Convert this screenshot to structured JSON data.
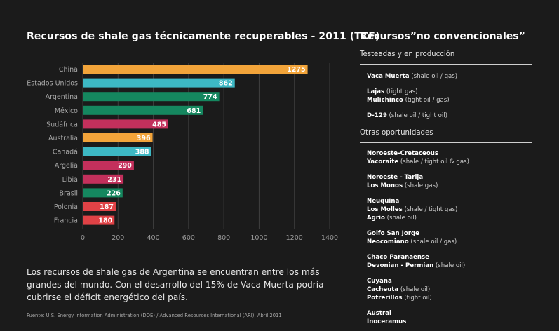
{
  "left": {
    "title": "Recursos de shale gas técnicamente recuperables - 2011 (TCF)",
    "body": "Los recursos de shale gas de Argentina se encuentran entre los más grandes del mundo. Con el desarrollo del 15% de Vaca Muerta podría cubrirse el déficit energético del país.",
    "source": "Fuente: U.S. Energy Information Administration (DOE) / Advanced Resources International (ARI), Abril 2011"
  },
  "chart_data": {
    "type": "bar",
    "orientation": "horizontal",
    "categories": [
      "China",
      "Estados Unidos",
      "Argentina",
      "México",
      "Sudáfrica",
      "Australia",
      "Canadá",
      "Argelia",
      "Libia",
      "Brasil",
      "Polonia",
      "Francia"
    ],
    "values": [
      1275,
      862,
      774,
      681,
      485,
      396,
      388,
      290,
      231,
      226,
      187,
      180
    ],
    "bar_colors": [
      "#f2a43a",
      "#3db8c4",
      "#15875f",
      "#15875f",
      "#c3305c",
      "#f2a43a",
      "#3db8c4",
      "#c3305c",
      "#c3305c",
      "#15875f",
      "#e04246",
      "#e04246"
    ],
    "x_ticks": [
      "0",
      "200",
      "400",
      "600",
      "800",
      "1000",
      "1200",
      "1400"
    ],
    "xlim": [
      0,
      1400
    ],
    "title": "Recursos de shale gas técnicamente recuperables - 2011 (TCF)",
    "grid": true
  },
  "right": {
    "title": "Recursos”no convencionales”",
    "section1": "Testeadas y en producción",
    "section2": "Otras oportunidades"
  },
  "entries1": [
    [
      {
        "b": "Vaca Muerta",
        "t": " (shale oil / gas)"
      }
    ],
    "sp",
    [
      {
        "b": "Lajas",
        "t": " (tight gas)"
      }
    ],
    [
      {
        "b": "Mulichinco",
        "t": " (tight oil / gas)"
      }
    ],
    "sp",
    [
      {
        "b": "D-129",
        "t": " (shale oil / tight oil)"
      }
    ]
  ],
  "entries2": [
    [
      {
        "b": "Noroeste-Cretaceous",
        "t": ""
      }
    ],
    [
      {
        "b": "Yacoraite",
        "t": " (shale / tight oil & gas)"
      }
    ],
    "sp",
    [
      {
        "b": "Noroeste - Tarija",
        "t": ""
      }
    ],
    [
      {
        "b": "Los Monos",
        "t": " (shale gas)"
      }
    ],
    "sp",
    [
      {
        "b": "Neuquina",
        "t": ""
      }
    ],
    [
      {
        "b": "Los Molles",
        "t": " (shale / tight gas)"
      }
    ],
    [
      {
        "b": "Agrio",
        "t": " (shale oil)"
      }
    ],
    "sp",
    [
      {
        "b": "Golfo San Jorge",
        "t": ""
      }
    ],
    [
      {
        "b": "Neocomiano",
        "t": " (shale oil / gas)"
      }
    ],
    "sp",
    [
      {
        "b": "Chaco Paranaense",
        "t": ""
      }
    ],
    [
      {
        "b": "Devonian - Permian",
        "t": " (shale oil)"
      }
    ],
    "sp",
    [
      {
        "b": "Cuyana",
        "t": ""
      }
    ],
    [
      {
        "b": "Cacheuta",
        "t": " (shale oil)"
      }
    ],
    [
      {
        "b": "Potrerillos",
        "t": " (tight oil)"
      }
    ],
    "sp",
    [
      {
        "b": "Austral",
        "t": ""
      }
    ],
    [
      {
        "b": "Inoceramus",
        "t": ""
      }
    ]
  ]
}
